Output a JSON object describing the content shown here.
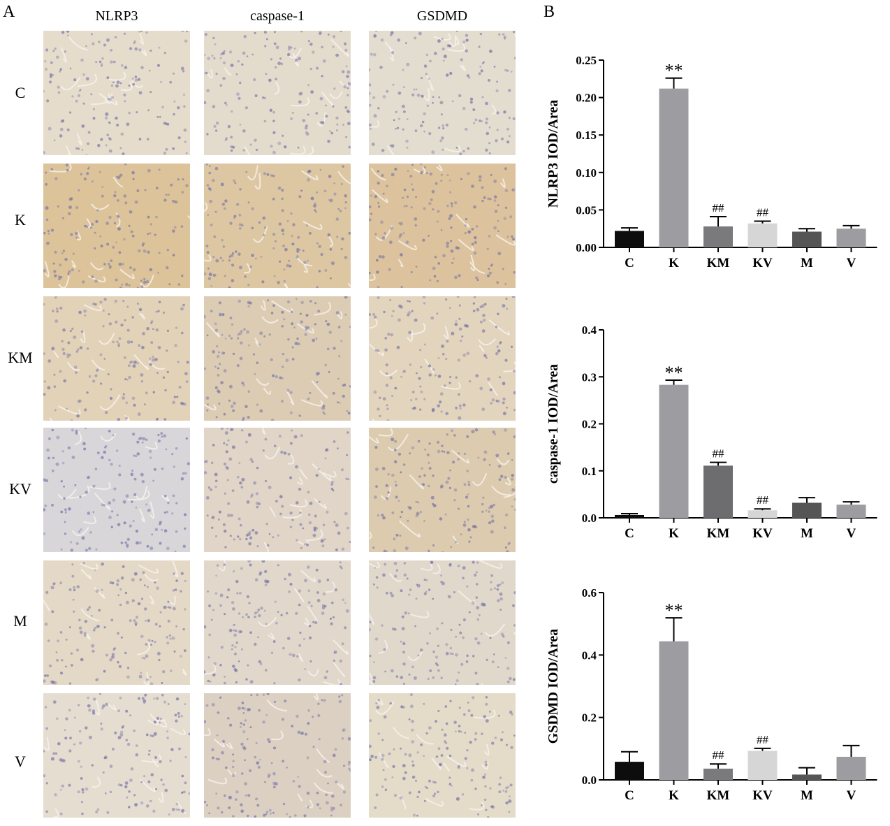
{
  "panels": {
    "a": "A",
    "b": "B"
  },
  "micrograph": {
    "columns": [
      "NLRP3",
      "caspase-1",
      "GSDMD"
    ],
    "rows": [
      {
        "label": "C",
        "tones": [
          "#e6dccb",
          "#e3dbcc",
          "#e3ddcf"
        ]
      },
      {
        "label": "K",
        "tones": [
          "#dcc39a",
          "#ddc7a3",
          "#dcc39d"
        ]
      },
      {
        "label": "KM",
        "tones": [
          "#e2d2b8",
          "#dcccb4",
          "#e2d4bd"
        ]
      },
      {
        "label": "KV",
        "tones": [
          "#d8d6d9",
          "#e0d5c6",
          "#dccbae"
        ]
      },
      {
        "label": "M",
        "tones": [
          "#e4d9c6",
          "#e1d7ca",
          "#e0d8ca"
        ]
      },
      {
        "label": "V",
        "tones": [
          "#e5ddd0",
          "#dcd0c2",
          "#e5dbc9"
        ]
      }
    ],
    "nucleus_color": "#6f6fa6"
  },
  "chart_data": [
    {
      "type": "bar",
      "categories": [
        "C",
        "K",
        "KM",
        "KV",
        "M",
        "V"
      ],
      "values": [
        0.022,
        0.212,
        0.028,
        0.032,
        0.021,
        0.025
      ],
      "errors": [
        0.004,
        0.014,
        0.013,
        0.003,
        0.004,
        0.004
      ],
      "annotations": [
        "",
        "**",
        "##",
        "##",
        "",
        ""
      ],
      "colors": [
        "#0d0d0d",
        "#9c9ca1",
        "#7a7a7c",
        "#d6d6d6",
        "#555556",
        "#9c9ca1"
      ],
      "ylabel": "NLRP3 IOD/Area",
      "ylim": [
        0,
        0.25
      ],
      "yticks": [
        "0.00",
        "0.05",
        "0.10",
        "0.15",
        "0.20",
        "0.25"
      ]
    },
    {
      "type": "bar",
      "categories": [
        "C",
        "K",
        "KM",
        "KV",
        "M",
        "V"
      ],
      "values": [
        0.006,
        0.283,
        0.111,
        0.016,
        0.032,
        0.028
      ],
      "errors": [
        0.003,
        0.01,
        0.007,
        0.003,
        0.011,
        0.006
      ],
      "annotations": [
        "",
        "**",
        "##",
        "##",
        "",
        ""
      ],
      "colors": [
        "#0d0d0d",
        "#9c9ca1",
        "#6d6d6f",
        "#d6d6d6",
        "#555556",
        "#9c9ca1"
      ],
      "ylabel": "caspase-1 IOD/Area",
      "ylim": [
        0,
        0.4
      ],
      "yticks": [
        "0.0",
        "0.1",
        "0.2",
        "0.3",
        "0.4"
      ]
    },
    {
      "type": "bar",
      "categories": [
        "C",
        "K",
        "KM",
        "KV",
        "M",
        "V"
      ],
      "values": [
        0.058,
        0.444,
        0.036,
        0.093,
        0.017,
        0.074
      ],
      "errors": [
        0.032,
        0.075,
        0.015,
        0.008,
        0.022,
        0.036
      ],
      "annotations": [
        "",
        "**",
        "##",
        "##",
        "",
        ""
      ],
      "colors": [
        "#0d0d0d",
        "#9c9ca1",
        "#7a7a7c",
        "#d6d6d6",
        "#555556",
        "#9c9ca1"
      ],
      "ylabel": "GSDMD IOD/Area",
      "ylim": [
        0,
        0.6
      ],
      "yticks": [
        "0.0",
        "0.2",
        "0.4",
        "0.6"
      ]
    }
  ]
}
